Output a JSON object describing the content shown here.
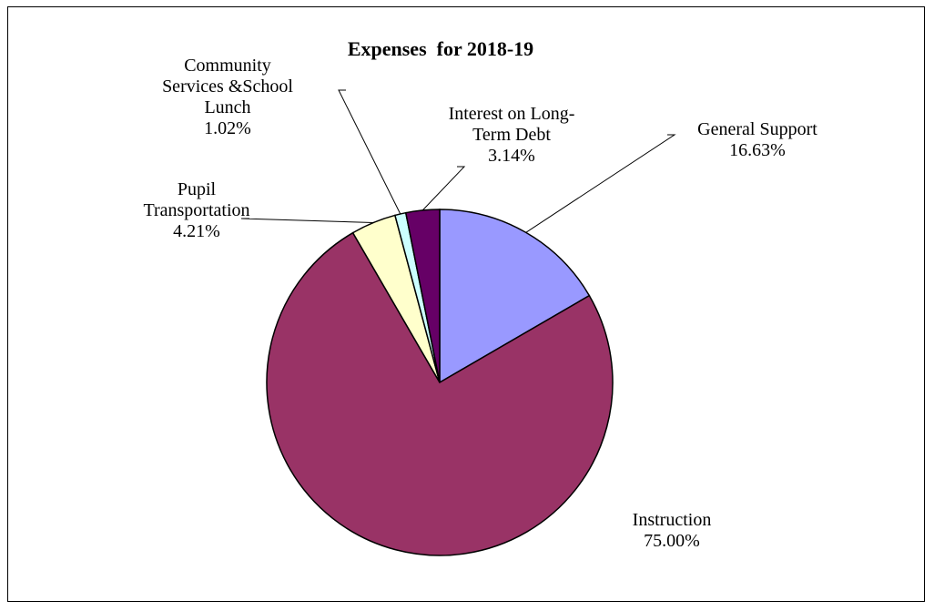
{
  "chart_data": {
    "type": "pie",
    "title": "Expenses  for 2018-19",
    "slices": [
      {
        "key": "general",
        "label_lines": [
          "General Support"
        ],
        "pct_text": "16.63%",
        "value": 16.63,
        "color": "#9999FF"
      },
      {
        "key": "instruction",
        "label_lines": [
          "Instruction"
        ],
        "pct_text": "75.00%",
        "value": 75.0,
        "color": "#993366"
      },
      {
        "key": "transport",
        "label_lines": [
          "Pupil",
          "Transportation"
        ],
        "pct_text": "4.21%",
        "value": 4.21,
        "color": "#FFFFCC"
      },
      {
        "key": "community",
        "label_lines": [
          "Community",
          "Services &School",
          "Lunch"
        ],
        "pct_text": "1.02%",
        "value": 1.02,
        "color": "#CCFFFF"
      },
      {
        "key": "interest",
        "label_lines": [
          "Interest on Long-",
          "Term Debt"
        ],
        "pct_text": "3.14%",
        "value": 3.14,
        "color": "#660066"
      }
    ],
    "legend": "none"
  }
}
